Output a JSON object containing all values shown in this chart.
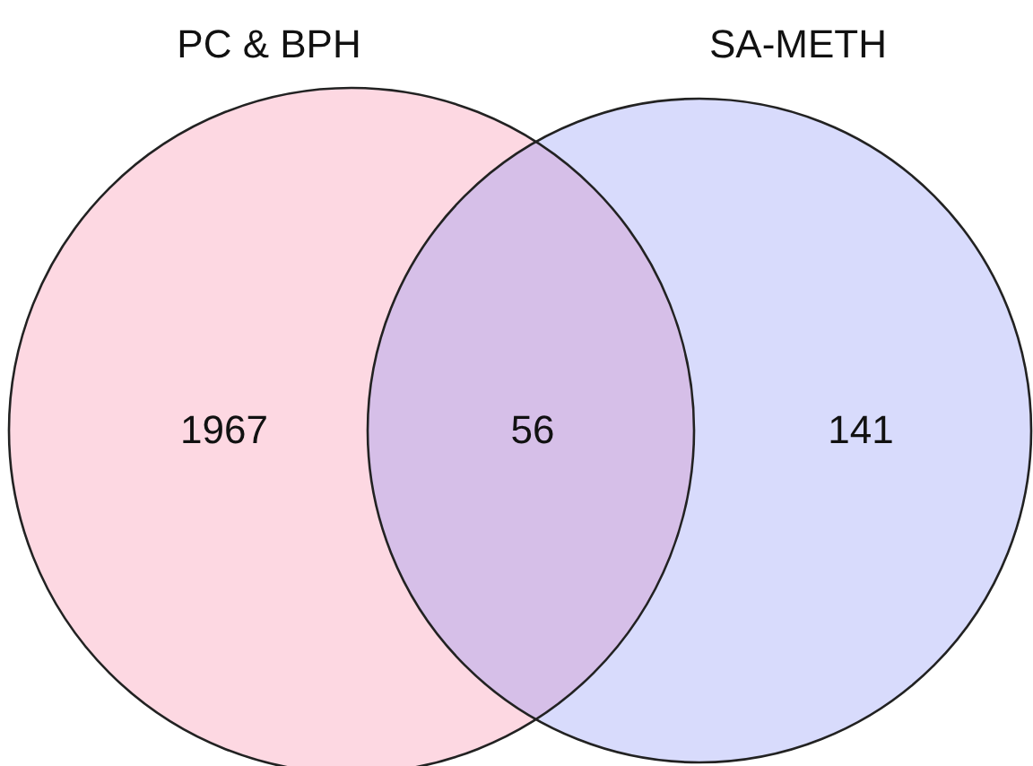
{
  "chart_data": {
    "type": "other",
    "categories": [
      "PC & BPH",
      null,
      "SA-METH"
    ],
    "values": [
      1967,
      56,
      141
    ],
    "data_labels": true,
    "colors": [
      "#fdd8e2",
      "#d6bfe8",
      "#d8dbfc"
    ]
  }
}
